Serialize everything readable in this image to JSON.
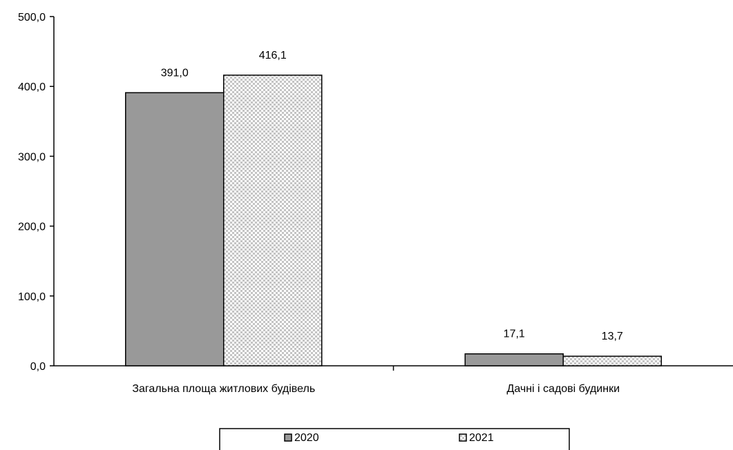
{
  "chart_data": {
    "type": "bar",
    "title": "",
    "xlabel": "",
    "ylabel": "",
    "ylim": [
      0,
      500
    ],
    "yticks": [
      "0,0",
      "100,0",
      "200,0",
      "300,0",
      "400,0",
      "500,0"
    ],
    "ytick_values": [
      0,
      100,
      200,
      300,
      400,
      500
    ],
    "categories": [
      "Загальна площа житлових будівель",
      "Дачні і садові будинки"
    ],
    "series": [
      {
        "name": "2020",
        "values": [
          391.0,
          17.1
        ],
        "labels": [
          "391,0",
          "17,1"
        ],
        "color": "#999999",
        "pattern": "solid"
      },
      {
        "name": "2021",
        "values": [
          416.1,
          13.7
        ],
        "labels": [
          "416,1",
          "13,7"
        ],
        "color": "#c8c8c8",
        "pattern": "checker"
      }
    ],
    "grid": false,
    "legend": {
      "position": "bottom",
      "entries": [
        "2020",
        "2021"
      ]
    }
  }
}
